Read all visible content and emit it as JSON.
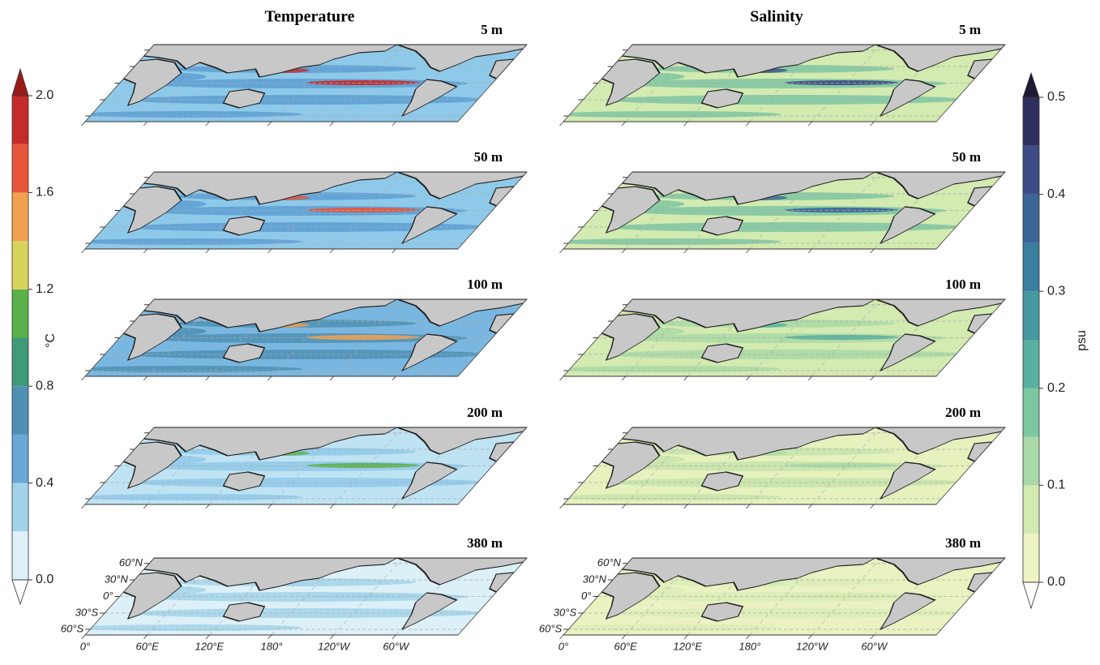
{
  "columns": [
    {
      "title": "Temperature",
      "panels": [
        "5 m",
        "50 m",
        "100 m",
        "200 m",
        "380 m"
      ],
      "colorbar": {
        "label": "°C",
        "levels": [
          0,
          0.2,
          0.4,
          0.6,
          0.8,
          1.0,
          1.2,
          1.4,
          1.6,
          1.8,
          2.0
        ],
        "colors": [
          "#def1f8",
          "#a3d3ea",
          "#6aa6d6",
          "#4f90b4",
          "#3f9a7a",
          "#5bb04a",
          "#d7d35c",
          "#f1a04f",
          "#e6553a",
          "#c62b2b"
        ],
        "over_color": "#9a1a1a",
        "under_color": "#ffffff",
        "ticks": [
          {
            "value": 0,
            "label": "0.0"
          },
          0.4,
          0.8,
          1.2,
          1.6,
          {
            "value": 2,
            "label": "2.0"
          }
        ]
      }
    },
    {
      "title": "Salinity",
      "panels": [
        "5 m",
        "50 m",
        "100 m",
        "200 m",
        "380 m"
      ],
      "colorbar": {
        "label": "psu",
        "levels": [
          0,
          0.05,
          0.1,
          0.15,
          0.2,
          0.25,
          0.3,
          0.35,
          0.4,
          0.45,
          0.5
        ],
        "colors": [
          "#eef3c2",
          "#d3eab0",
          "#a9d9a6",
          "#7cc6a2",
          "#58b0a0",
          "#4597a0",
          "#3a7f9e",
          "#3b6597",
          "#3d4c85",
          "#2f2f5e"
        ],
        "over_color": "#1e1935",
        "under_color": "#ffffff",
        "ticks": [
          {
            "value": 0,
            "label": "0.0"
          },
          0.1,
          0.2,
          0.3,
          0.4,
          0.5
        ]
      }
    }
  ],
  "map_labels": {
    "lat": [
      "60°N",
      "30°N",
      "0°",
      "30°S",
      "60°S"
    ],
    "lon": [
      "0°",
      "60°E",
      "120°E",
      "180°",
      "120°W",
      "60°W"
    ]
  }
}
